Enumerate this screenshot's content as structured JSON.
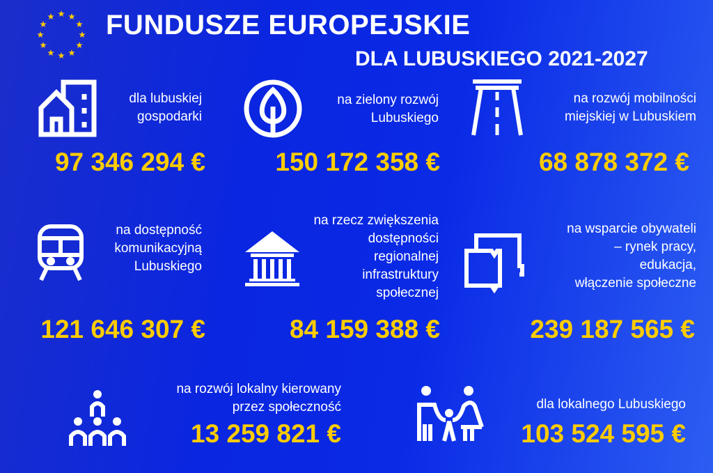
{
  "header": {
    "title": "FUNDUSZE EUROPEJSKIE",
    "subtitle": "DLA LUBUSKIEGO 2021-2027",
    "logo_icon": "eu-stars-icon"
  },
  "colors": {
    "background": "#0a26e0",
    "accent": "#ffcc00",
    "text": "#ffffff"
  },
  "items": [
    {
      "icon": "buildings-icon",
      "label_lines": [
        "dla lubuskiej",
        "gospodarki"
      ],
      "amount": "97 346 294 €"
    },
    {
      "icon": "tree-icon",
      "label_lines": [
        "na zielony rozwój",
        "Lubuskiego"
      ],
      "amount": "150 172 358 €"
    },
    {
      "icon": "road-icon",
      "label_lines": [
        "na rozwój mobilności",
        "miejskiej w Lubuskiem"
      ],
      "amount": "68 878 372 €"
    },
    {
      "icon": "train-icon",
      "label_lines": [
        "na dostępność",
        "komunikacyjną",
        "Lubuskiego"
      ],
      "amount": "121 646 307 €"
    },
    {
      "icon": "institution-icon",
      "label_lines": [
        "na rzecz zwiększenia",
        "dostępności",
        "regionalnej",
        "infrastruktury",
        "społecznej"
      ],
      "amount": "84 159 388 €"
    },
    {
      "icon": "book-icon",
      "label_lines": [
        "na wsparcie obywateli",
        "– rynek pracy,",
        "edukacja,",
        "włączenie społeczne"
      ],
      "amount": "239 187 565 €"
    },
    {
      "icon": "community-icon",
      "label_lines": [
        "na rozwój lokalny kierowany",
        "przez społeczność"
      ],
      "amount": "13 259 821 €"
    },
    {
      "icon": "family-icon",
      "label_lines": [
        "dla lokalnego Lubuskiego"
      ],
      "amount": "103 524 595 €"
    }
  ]
}
